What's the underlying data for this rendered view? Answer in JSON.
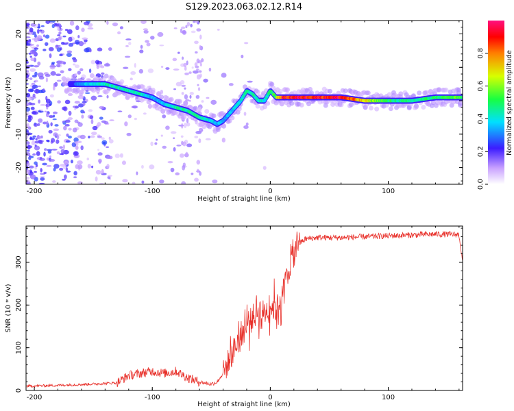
{
  "title": "S129.2023.063.02.12.R14",
  "chart_data": [
    {
      "type": "heatmap",
      "name": "spectrogram",
      "xlabel": "Height of straight line (km)",
      "ylabel": "Frequency (Hz)",
      "xlim": [
        -207,
        163
      ],
      "ylim": [
        -25,
        24
      ],
      "xticks": [
        -200,
        -100,
        0,
        100
      ],
      "yticks": [
        -20,
        -10,
        0,
        10,
        20
      ],
      "colorbar": {
        "label": "Normalized spectral amplitude",
        "range": [
          0,
          1
        ],
        "ticks": [
          0.0,
          0.2,
          0.4,
          0.6,
          0.8
        ],
        "tick_labels": [
          "0.0",
          "0.2",
          "0.4",
          "0.6",
          "0.8"
        ]
      },
      "ridge": {
        "x": [
          -165,
          -150,
          -140,
          -130,
          -120,
          -110,
          -100,
          -90,
          -80,
          -70,
          -60,
          -50,
          -45,
          -40,
          -35,
          -30,
          -25,
          -20,
          -15,
          -10,
          -5,
          0,
          5,
          10,
          20,
          40,
          60,
          80,
          100,
          120,
          140,
          160
        ],
        "y": [
          5,
          5,
          5,
          4,
          3,
          2,
          1,
          -1,
          -2,
          -3,
          -5,
          -6,
          -7,
          -6,
          -4,
          -2,
          0,
          3,
          2,
          0,
          0,
          3,
          1,
          1,
          1,
          1,
          1,
          0,
          0,
          0,
          1,
          1
        ],
        "amplitude": [
          0.3,
          0.4,
          0.45,
          0.45,
          0.45,
          0.45,
          0.35,
          0.35,
          0.45,
          0.45,
          0.45,
          0.4,
          0.35,
          0.35,
          0.35,
          0.4,
          0.4,
          0.45,
          0.45,
          0.45,
          0.4,
          0.5,
          0.55,
          0.9,
          0.95,
          0.95,
          0.95,
          0.7,
          0.5,
          0.45,
          0.5,
          0.55
        ]
      }
    },
    {
      "type": "line",
      "name": "snr",
      "xlabel": "Height of straight line (km)",
      "ylabel": "SNR (10 * v/v)",
      "xlim": [
        -207,
        163
      ],
      "ylim": [
        0,
        385
      ],
      "xticks": [
        -200,
        -100,
        0,
        100
      ],
      "yticks": [
        0,
        100,
        200,
        300
      ],
      "color": "#e8302a",
      "series": [
        {
          "name": "SNR",
          "x": [
            -207,
            -180,
            -150,
            -130,
            -120,
            -110,
            -100,
            -90,
            -80,
            -70,
            -60,
            -50,
            -45,
            -40,
            -35,
            -30,
            -25,
            -20,
            -15,
            -10,
            -5,
            0,
            5,
            10,
            15,
            20,
            25,
            30,
            40,
            60,
            80,
            100,
            120,
            140,
            160,
            163
          ],
          "y": [
            10,
            12,
            15,
            18,
            35,
            40,
            45,
            40,
            45,
            30,
            20,
            15,
            20,
            40,
            70,
            100,
            130,
            150,
            170,
            190,
            180,
            200,
            190,
            220,
            280,
            320,
            345,
            355,
            358,
            358,
            360,
            362,
            364,
            366,
            365,
            300
          ]
        }
      ]
    }
  ]
}
